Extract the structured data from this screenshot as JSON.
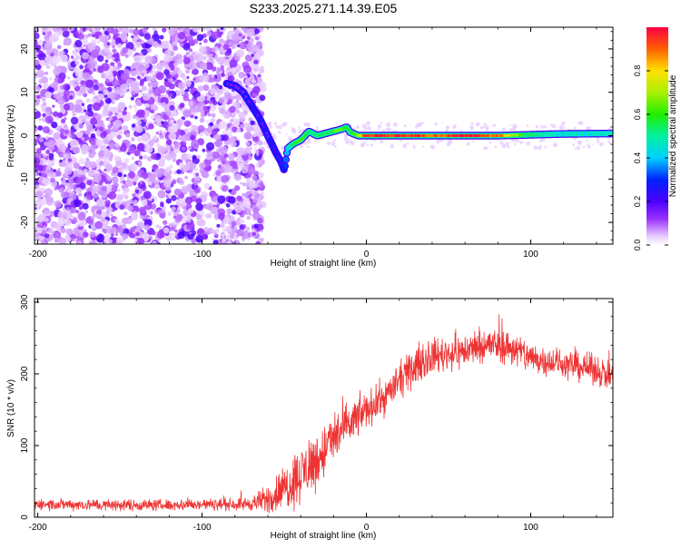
{
  "title": "S233.2025.271.14.39.E05",
  "chart_data": [
    {
      "type": "heatmap",
      "xlabel": "Height of straight line (km)",
      "ylabel": "Frequency (Hz)",
      "xlim": [
        -202,
        150
      ],
      "ylim": [
        -25,
        25
      ],
      "x_ticks": [
        -200,
        -100,
        0,
        100
      ],
      "y_ticks": [
        -20,
        -10,
        0,
        10,
        20
      ],
      "colorbar": {
        "label": "Normalized spectral amplitude",
        "range": [
          0,
          1
        ],
        "ticks": [
          "0.0",
          "0.2",
          "0.4",
          "0.6",
          "0.8"
        ]
      },
      "noise_region_x": [
        -202,
        -63
      ],
      "trace": {
        "x": [
          -85,
          -80,
          -75,
          -70,
          -65,
          -60,
          -55,
          -52,
          -50,
          -48,
          -45,
          -40,
          -35,
          -30,
          -25,
          -20,
          -15,
          -12,
          -10,
          -5,
          0,
          20,
          40,
          60,
          80,
          100,
          120,
          150
        ],
        "freq": [
          12,
          11.5,
          10,
          7,
          4,
          0,
          -4,
          -6,
          -8,
          -3,
          -2,
          -1,
          1,
          0,
          0.5,
          1,
          1.5,
          2,
          0.8,
          0,
          0,
          0,
          0,
          0,
          0,
          0.2,
          0.4,
          0.5
        ],
        "amplitude": [
          0.2,
          0.2,
          0.2,
          0.22,
          0.22,
          0.2,
          0.2,
          0.22,
          0.22,
          0.4,
          0.55,
          0.6,
          0.5,
          0.55,
          0.55,
          0.6,
          0.62,
          0.6,
          0.55,
          0.7,
          0.95,
          0.95,
          0.9,
          0.95,
          0.9,
          0.5,
          0.45,
          0.45
        ]
      }
    },
    {
      "type": "line",
      "xlabel": "Height of straight line (km)",
      "ylabel": "SNR (10 * v/v)",
      "xlim": [
        -202,
        150
      ],
      "ylim": [
        0,
        305
      ],
      "x_ticks": [
        -200,
        -100,
        0,
        100
      ],
      "y_ticks": [
        0,
        100,
        200,
        300
      ],
      "series": [
        {
          "name": "SNR",
          "color": "#ee3333",
          "x": [
            -202,
            -180,
            -160,
            -140,
            -120,
            -100,
            -80,
            -70,
            -60,
            -50,
            -40,
            -30,
            -20,
            -10,
            0,
            10,
            20,
            30,
            40,
            50,
            60,
            70,
            80,
            90,
            100,
            110,
            120,
            130,
            140,
            150
          ],
          "mean": [
            18,
            18,
            17,
            17,
            17,
            18,
            18,
            19,
            25,
            40,
            60,
            80,
            110,
            130,
            150,
            165,
            190,
            210,
            225,
            228,
            232,
            240,
            240,
            235,
            222,
            218,
            214,
            210,
            205,
            195
          ],
          "noise": [
            10,
            10,
            10,
            10,
            10,
            10,
            10,
            12,
            25,
            40,
            50,
            50,
            45,
            40,
            30,
            30,
            30,
            30,
            30,
            30,
            30,
            30,
            30,
            30,
            30,
            25,
            25,
            25,
            25,
            25
          ]
        }
      ]
    }
  ]
}
